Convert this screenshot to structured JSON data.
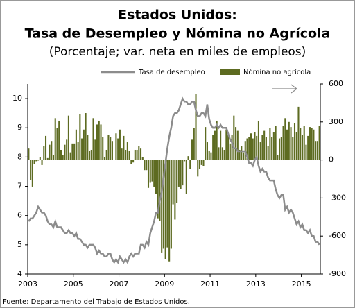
{
  "chart_data": {
    "type": "bar",
    "title": "Estados Unidos:",
    "title2": "Tasa de Desempleo y Nómina no Agrícola",
    "subtitle": "(Porcentaje; var. neta en miles de empleos)",
    "source": "Fuente: Departamento del Trabajo de Estados Unidos.",
    "categories": [
      "2003",
      null,
      null,
      null,
      null,
      null,
      null,
      null,
      null,
      null,
      null,
      null,
      null,
      null,
      null,
      null,
      null,
      null,
      null,
      null,
      null,
      null,
      null,
      null,
      "2005",
      null,
      null,
      null,
      null,
      null,
      null,
      null,
      null,
      null,
      null,
      null,
      null,
      null,
      null,
      null,
      null,
      null,
      null,
      null,
      null,
      null,
      null,
      null,
      "2007",
      null,
      null,
      null,
      null,
      null,
      null,
      null,
      null,
      null,
      null,
      null,
      null,
      null,
      null,
      null,
      null,
      null,
      null,
      null,
      null,
      null,
      null,
      null,
      "2009",
      null,
      null,
      null,
      null,
      null,
      null,
      null,
      null,
      null,
      null,
      null,
      null,
      null,
      null,
      null,
      null,
      null,
      null,
      null,
      null,
      null,
      null,
      null,
      "2011",
      null,
      null,
      null,
      null,
      null,
      null,
      null,
      null,
      null,
      null,
      null,
      null,
      null,
      null,
      null,
      null,
      null,
      null,
      null,
      null,
      null,
      null,
      null,
      "2013",
      null,
      null,
      null,
      null,
      null,
      null,
      null,
      null,
      null,
      null,
      null,
      null,
      null,
      null,
      null,
      null,
      null,
      null,
      null,
      null,
      null,
      null,
      null,
      "2015",
      null,
      null,
      null,
      null,
      null,
      null,
      null,
      null,
      null
    ],
    "series": [
      {
        "name": "Tasa de desempleo",
        "type": "line",
        "color": "#8c8c8c",
        "axis": "y",
        "values": [
          5.8,
          5.9,
          5.9,
          6.0,
          6.1,
          6.3,
          6.2,
          6.1,
          6.1,
          6.0,
          5.8,
          5.7,
          5.7,
          5.6,
          5.8,
          5.6,
          5.6,
          5.6,
          5.5,
          5.4,
          5.4,
          5.5,
          5.4,
          5.4,
          5.3,
          5.4,
          5.2,
          5.2,
          5.1,
          5.0,
          5.0,
          4.9,
          5.0,
          5.0,
          5.0,
          4.9,
          4.7,
          4.8,
          4.7,
          4.7,
          4.6,
          4.6,
          4.7,
          4.7,
          4.5,
          4.4,
          4.5,
          4.4,
          4.6,
          4.5,
          4.4,
          4.5,
          4.4,
          4.6,
          4.7,
          4.6,
          4.7,
          4.7,
          4.7,
          5.0,
          5.0,
          4.9,
          5.1,
          5.0,
          5.4,
          5.6,
          5.8,
          6.1,
          6.1,
          6.5,
          6.8,
          7.3,
          7.8,
          8.3,
          8.7,
          9.0,
          9.4,
          9.5,
          9.5,
          9.6,
          9.8,
          10.0,
          9.9,
          9.9,
          9.8,
          9.8,
          9.9,
          9.9,
          9.6,
          9.4,
          9.4,
          9.5,
          9.5,
          9.4,
          9.8,
          9.3,
          9.1,
          9.0,
          9.0,
          9.1,
          9.0,
          9.1,
          9.0,
          9.0,
          9.0,
          8.8,
          8.6,
          8.5,
          8.3,
          8.3,
          8.2,
          8.2,
          8.2,
          8.2,
          8.2,
          8.0,
          7.8,
          7.8,
          7.7,
          7.9,
          8.0,
          7.7,
          7.5,
          7.6,
          7.5,
          7.5,
          7.3,
          7.2,
          7.2,
          7.2,
          6.9,
          6.7,
          6.6,
          6.7,
          6.7,
          6.2,
          6.3,
          6.1,
          6.2,
          6.1,
          5.9,
          5.7,
          5.8,
          5.6,
          5.7,
          5.5,
          5.5,
          5.4,
          5.5,
          5.3,
          5.3,
          5.1,
          5.1,
          5.0
        ]
      },
      {
        "name": "Nómina no agrícola",
        "type": "bar",
        "color": "#5d6b21",
        "axis": "y2",
        "values": [
          90,
          -160,
          -210,
          -30,
          -10,
          -5,
          20,
          -40,
          110,
          190,
          15,
          120,
          150,
          40,
          330,
          250,
          310,
          80,
          40,
          120,
          160,
          350,
          60,
          130,
          130,
          240,
          140,
          360,
          170,
          240,
          370,
          200,
          70,
          80,
          330,
          160,
          280,
          310,
          280,
          180,
          20,
          80,
          200,
          180,
          150,
          0,
          210,
          170,
          240,
          90,
          190,
          80,
          140,
          70,
          -30,
          -20,
          80,
          80,
          110,
          90,
          20,
          -80,
          -80,
          -220,
          -180,
          -170,
          -210,
          -270,
          -460,
          -480,
          -730,
          -700,
          -780,
          -690,
          -800,
          -700,
          -350,
          -470,
          -340,
          -210,
          -230,
          -200,
          -10,
          -270,
          30,
          -70,
          160,
          250,
          520,
          -130,
          -70,
          -40,
          -50,
          260,
          140,
          70,
          60,
          200,
          230,
          310,
          100,
          230,
          100,
          80,
          240,
          200,
          130,
          200,
          350,
          260,
          230,
          80,
          110,
          60,
          150,
          170,
          180,
          210,
          170,
          220,
          190,
          310,
          140,
          200,
          230,
          180,
          110,
          250,
          180,
          220,
          270,
          40,
          170,
          180,
          270,
          330,
          240,
          300,
          260,
          180,
          290,
          220,
          420,
          250,
          200,
          270,
          120,
          190,
          260,
          250,
          240,
          150,
          150,
          270
        ]
      }
    ],
    "ylim": [
      4,
      10.5
    ],
    "yticks": [
      4,
      5,
      6,
      7,
      8,
      9,
      10
    ],
    "y2lim": [
      -900,
      600
    ],
    "y2ticks": [
      -900,
      -600,
      -300,
      0,
      300,
      600
    ]
  }
}
